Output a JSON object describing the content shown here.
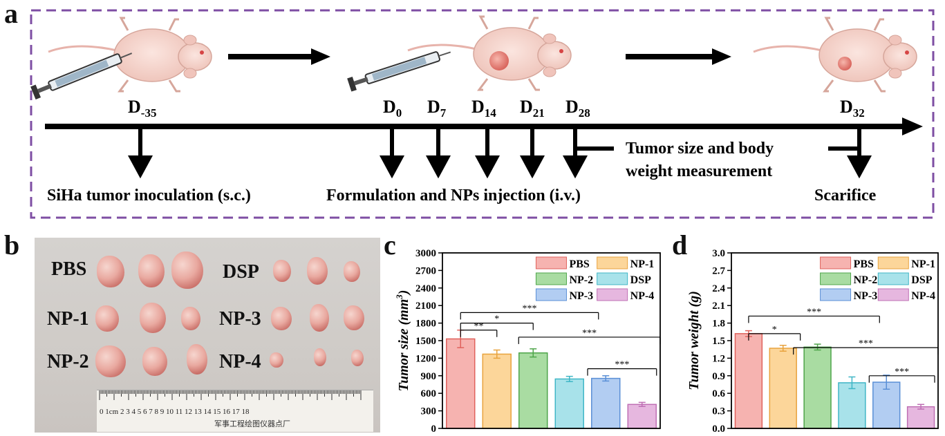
{
  "panel_labels": {
    "a": "a",
    "b": "b",
    "c": "c",
    "d": "d"
  },
  "timeline": {
    "days": {
      "d_m35": {
        "base": "D",
        "sub": "-35"
      },
      "d0": {
        "base": "D",
        "sub": "0"
      },
      "d7": {
        "base": "D",
        "sub": "7"
      },
      "d14": {
        "base": "D",
        "sub": "14"
      },
      "d21": {
        "base": "D",
        "sub": "21"
      },
      "d28": {
        "base": "D",
        "sub": "28"
      },
      "d32": {
        "base": "D",
        "sub": "32"
      }
    },
    "inoculation": "SiHa tumor inoculation (s.c.)",
    "injection": "Formulation and NPs injection (i.v.)",
    "measurement_line1": "Tumor size and body",
    "measurement_line2": "weight measurement",
    "sacrifice": "Scarifice"
  },
  "photo": {
    "labels": {
      "pbs": "PBS",
      "dsp": "DSP",
      "np1": "NP-1",
      "np3": "NP-3",
      "np2": "NP-2",
      "np4": "NP-4"
    },
    "ruler_text": "0 1cm 2 3 4 5 6 7 8 9 10 11 12 13 14 15 16 17 18",
    "ruler_print": "军事工程绘图仪器点厂"
  },
  "colors": {
    "PBS": {
      "fill": "#f6b3b0",
      "stroke": "#e0625c"
    },
    "NP-1": {
      "fill": "#fcd69a",
      "stroke": "#e8a33d"
    },
    "NP-2": {
      "fill": "#a9dca2",
      "stroke": "#4ea54a"
    },
    "DSP": {
      "fill": "#a8e2ea",
      "stroke": "#3fb6c6"
    },
    "NP-3": {
      "fill": "#b2cdf2",
      "stroke": "#5a8fd6"
    },
    "NP-4": {
      "fill": "#e6b7df",
      "stroke": "#bf6fb4"
    },
    "dash_border": "#7e4ea3"
  },
  "chart_data": [
    {
      "type": "bar",
      "panel": "c",
      "categories": [
        "PBS",
        "NP-1",
        "NP-2",
        "DSP",
        "NP-3",
        "NP-4"
      ],
      "values": [
        1530,
        1270,
        1290,
        845,
        855,
        410
      ],
      "errors": [
        150,
        70,
        70,
        45,
        45,
        35
      ],
      "ylabel": "Tumor size (mm3)",
      "ylabel_base": "Tumor size (mm",
      "ylabel_sup": "3",
      "ylabel_end": ")",
      "ylim": [
        0,
        3000
      ],
      "yticks": [
        "0",
        "300",
        "600",
        "900",
        "1200",
        "1500",
        "1800",
        "2100",
        "2400",
        "2700",
        "3000"
      ],
      "legend": [
        "PBS",
        "NP-1",
        "NP-2",
        "DSP",
        "NP-3",
        "NP-4"
      ],
      "legend_position": "top-right",
      "significance": [
        "**",
        "*",
        "***",
        "***",
        "***"
      ]
    },
    {
      "type": "bar",
      "panel": "d",
      "categories": [
        "PBS",
        "NP-1",
        "NP-2",
        "DSP",
        "NP-3",
        "NP-4"
      ],
      "values": [
        1.62,
        1.37,
        1.39,
        0.78,
        0.79,
        0.37
      ],
      "errors": [
        0.05,
        0.05,
        0.05,
        0.1,
        0.12,
        0.04
      ],
      "ylabel": "Tumor weight (g)",
      "ylim": [
        0,
        3.0
      ],
      "yticks": [
        "0.0",
        "0.3",
        "0.6",
        "0.9",
        "1.2",
        "1.5",
        "1.8",
        "2.1",
        "2.4",
        "2.7",
        "3.0"
      ],
      "legend": [
        "PBS",
        "NP-1",
        "NP-2",
        "DSP",
        "NP-3",
        "NP-4"
      ],
      "legend_position": "top-right",
      "significance": [
        "*",
        "***",
        "***",
        "***"
      ]
    }
  ]
}
